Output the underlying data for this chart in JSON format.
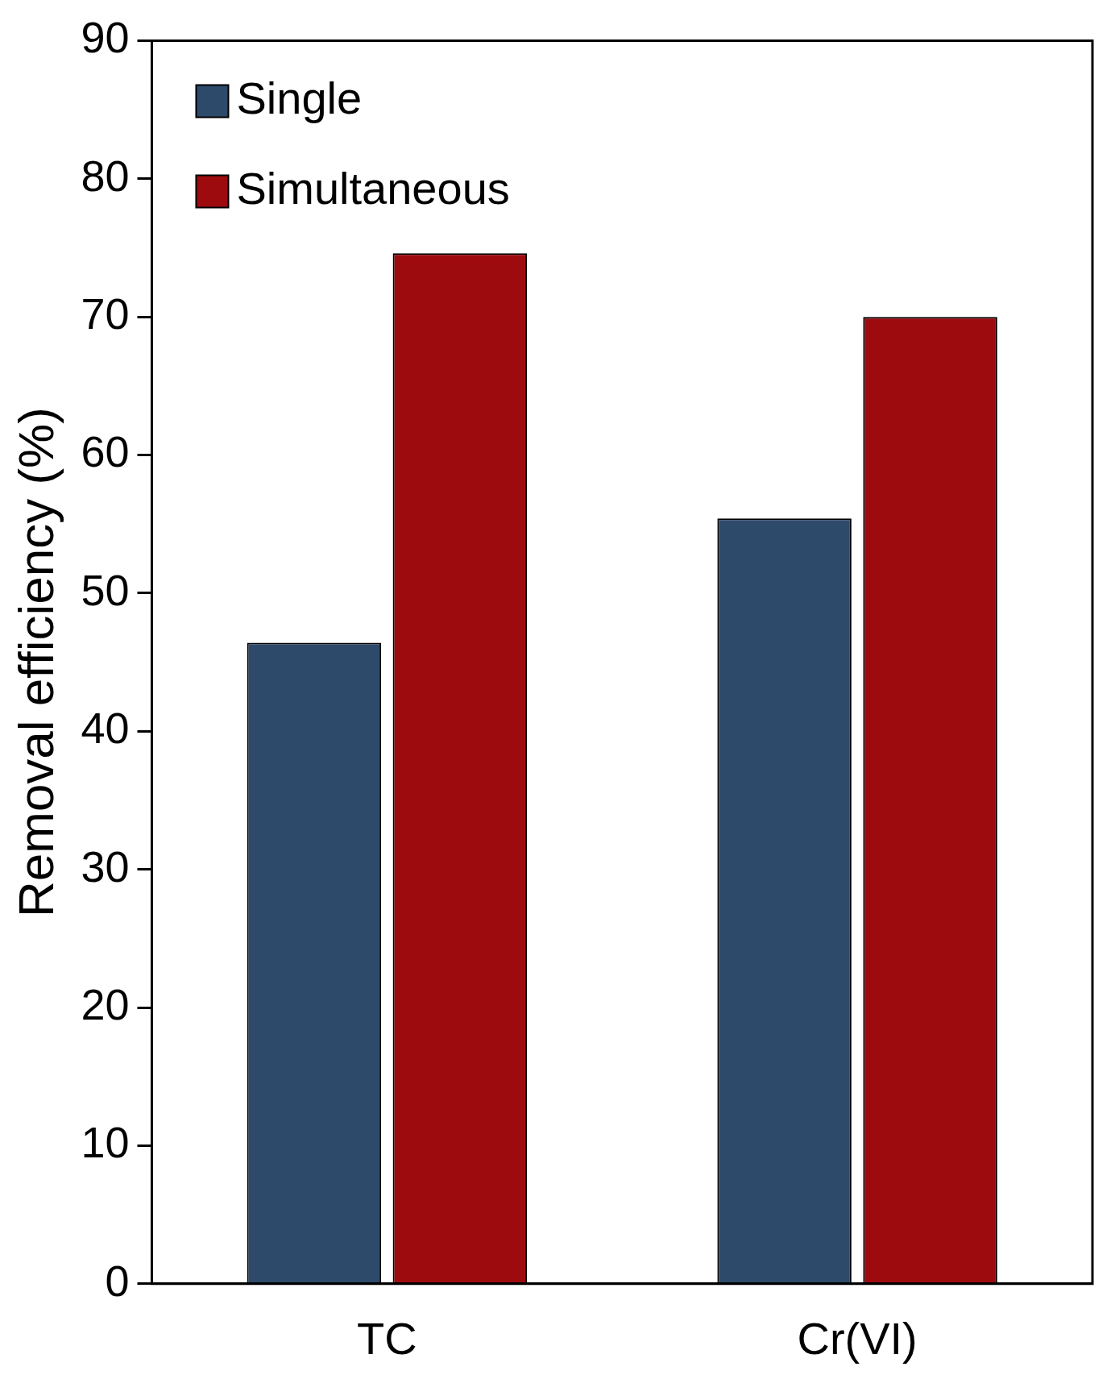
{
  "chart_data": {
    "type": "bar",
    "ylabel": "Removal efficiency (%)",
    "categories": [
      "TC",
      "Cr(VI)"
    ],
    "series": [
      {
        "name": "Single",
        "color": "#2e4a6b",
        "values": [
          46.4,
          55.4
        ]
      },
      {
        "name": "Simultaneous",
        "color": "#9e0b0f",
        "values": [
          74.6,
          70.0
        ]
      }
    ],
    "ylim": [
      0,
      90
    ],
    "yticks": [
      0,
      10,
      20,
      30,
      40,
      50,
      60,
      70,
      80,
      90
    ],
    "grid": false,
    "legend": "top left"
  }
}
